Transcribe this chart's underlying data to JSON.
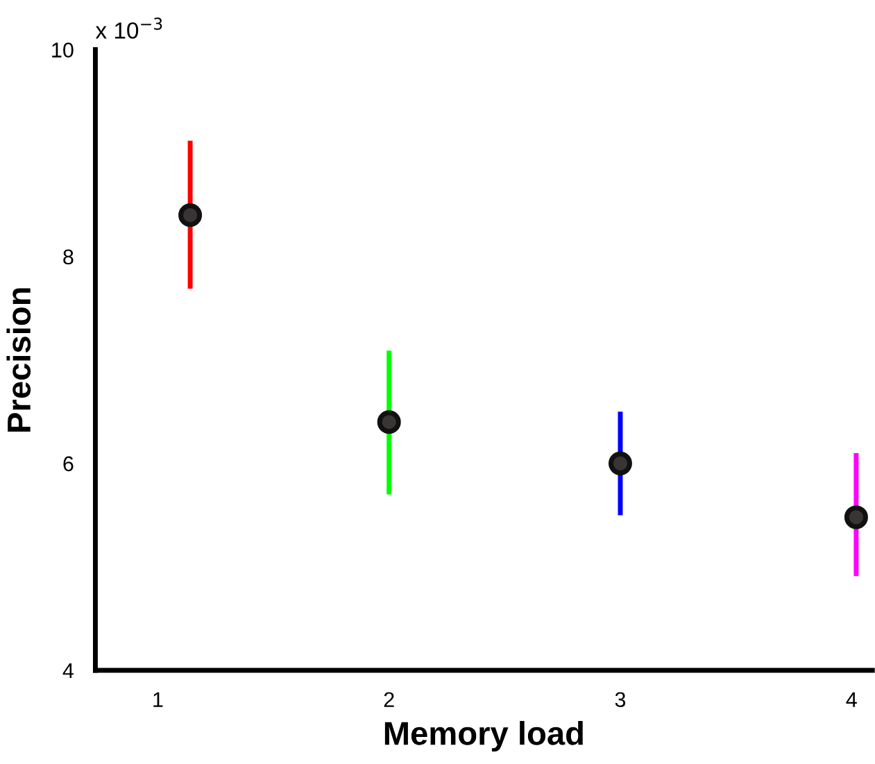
{
  "chart_data": {
    "type": "scatter",
    "xlabel": "Memory load",
    "ylabel": "Precision",
    "annotations": [
      "x 10$^{−3}$"
    ],
    "x": [
      1.14,
      2,
      3,
      4.02
    ],
    "series": [
      {
        "type": "line",
        "color": "#ff0000",
        "x": [
          1.14,
          1.14
        ],
        "values": [
          7.69,
          9.12
        ],
        "marker": "none"
      },
      {
        "type": "line",
        "color": "#00ff00",
        "x": [
          2,
          2
        ],
        "values": [
          5.7,
          7.09
        ],
        "marker": "none"
      },
      {
        "type": "line",
        "color": "#0000ff",
        "x": [
          3,
          3
        ],
        "values": [
          5.5,
          6.5
        ],
        "marker": "none"
      },
      {
        "type": "line",
        "color": "#ff00ff",
        "x": [
          4.02,
          4.02
        ],
        "values": [
          4.91,
          6.1
        ],
        "marker": "none"
      },
      {
        "color": "#111111",
        "values": [
          8.4,
          6.4,
          6.0,
          5.48
        ]
      }
    ],
    "xlim": [
      0.73,
      4.09
    ],
    "ylim": [
      4,
      10
    ],
    "xticks": [
      1,
      2,
      3,
      4
    ],
    "yticks": [
      4,
      6,
      8,
      10
    ],
    "marker": "circle",
    "grid": false,
    "legend": false
  }
}
